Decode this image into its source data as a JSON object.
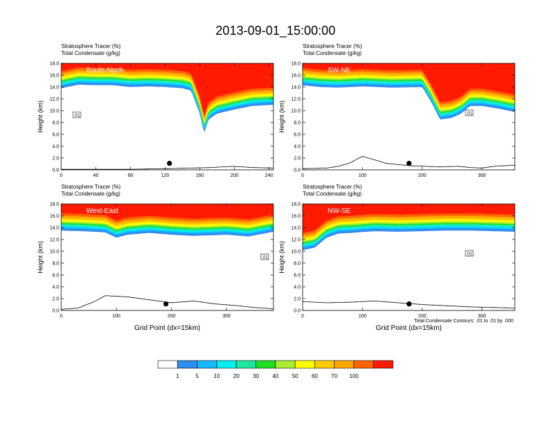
{
  "figure": {
    "title": "2013-09-01_15:00:00",
    "footnote": "Total Condensate Contours: .01 to .01 by .000"
  },
  "colorbar": {
    "colors": [
      "#ffffff",
      "#2f8cf0",
      "#16b8ff",
      "#00f0f0",
      "#1ee8a0",
      "#22dd22",
      "#a8ee33",
      "#ffff00",
      "#ffcc00",
      "#ffa500",
      "#ff6400",
      "#ff1a00"
    ],
    "labels": [
      "1",
      "5",
      "10",
      "20",
      "30",
      "40",
      "50",
      "60",
      "70",
      "100"
    ]
  },
  "chart_data": [
    {
      "type": "contour",
      "panel_label": "South-North",
      "title_line1": "Stratosphere Tracer   (%)",
      "title_line2": "Total Condensate   (g/kg)",
      "ylabel": "Height (km)",
      "xlabel": "",
      "xlim": [
        0,
        245
      ],
      "ylim": [
        0,
        18
      ],
      "xticks": [
        "0",
        "40",
        "80",
        "120",
        "160",
        "200",
        "240"
      ],
      "yticks": [
        "0.0",
        "2.0",
        "4.0",
        "6.0",
        "8.0",
        "10.0",
        "12.0",
        "14.0",
        "16.0",
        "18.0"
      ],
      "contour_label": ".01",
      "marker": {
        "x": 125,
        "y": 1.1
      },
      "tracer_base_x": [
        0,
        20,
        40,
        60,
        80,
        100,
        120,
        140,
        150,
        160,
        165,
        170,
        180,
        200,
        220,
        245
      ],
      "tracer_base_y": [
        13.8,
        14.4,
        14.3,
        14.3,
        14.0,
        14.1,
        14.0,
        13.8,
        13.4,
        9.5,
        6.2,
        8.5,
        9.5,
        10.2,
        10.8,
        11.0
      ],
      "terrain_x": [
        0,
        40,
        80,
        120,
        150,
        175,
        185,
        200,
        220,
        245
      ],
      "terrain_y": [
        0.1,
        0.1,
        0.1,
        0.2,
        0.3,
        0.4,
        0.5,
        0.6,
        0.4,
        0.3
      ]
    },
    {
      "type": "contour",
      "panel_label": "SW-NE",
      "title_line1": "Stratosphere Tracer   (%)",
      "title_line2": "Total Condensate   (g/kg)",
      "ylabel": "Height (km)",
      "xlabel": "",
      "xlim": [
        0,
        355
      ],
      "ylim": [
        0,
        18
      ],
      "xticks": [
        "0",
        "100",
        "200",
        "300"
      ],
      "yticks": [
        "0.0",
        "2.0",
        "4.0",
        "6.0",
        "8.0",
        "10.0",
        "12.0",
        "14.0",
        "16.0",
        "18.0"
      ],
      "contour_label": ".01",
      "marker": {
        "x": 178,
        "y": 1.1
      },
      "tracer_base_x": [
        0,
        30,
        60,
        100,
        150,
        200,
        215,
        230,
        250,
        265,
        280,
        300,
        330,
        355
      ],
      "tracer_base_y": [
        14.3,
        14.0,
        13.9,
        14.1,
        13.9,
        14.0,
        11.5,
        8.5,
        8.8,
        9.5,
        10.8,
        10.8,
        10.3,
        9.8
      ],
      "terrain_x": [
        0,
        40,
        60,
        80,
        100,
        140,
        180,
        230,
        260,
        280,
        300,
        320,
        355
      ],
      "terrain_y": [
        0.2,
        0.3,
        0.6,
        1.2,
        2.3,
        1.1,
        0.7,
        0.5,
        0.6,
        0.4,
        0.3,
        0.6,
        0.8
      ]
    },
    {
      "type": "contour",
      "panel_label": "West-East",
      "title_line1": "Stratosphere Tracer   (%)",
      "title_line2": "Total Condensate   (g/kg)",
      "ylabel": "Height (km)",
      "xlabel": "Grid Point (dx=15km)",
      "xlim": [
        0,
        385
      ],
      "ylim": [
        0,
        18
      ],
      "xticks": [
        "0",
        "100",
        "200",
        "300"
      ],
      "yticks": [
        "0.0",
        "2.0",
        "4.0",
        "6.0",
        "8.0",
        "10.0",
        "12.0",
        "14.0",
        "16.0",
        "18.0"
      ],
      "contour_label": ".01",
      "marker": {
        "x": 190,
        "y": 1.1
      },
      "tracer_base_x": [
        0,
        40,
        80,
        100,
        120,
        160,
        200,
        240,
        300,
        340,
        385
      ],
      "tracer_base_y": [
        13.5,
        13.4,
        13.2,
        12.3,
        12.8,
        13.1,
        12.8,
        12.6,
        12.8,
        12.5,
        13.3
      ],
      "terrain_x": [
        0,
        30,
        60,
        80,
        120,
        160,
        200,
        240,
        280,
        320,
        350,
        385
      ],
      "terrain_y": [
        0.2,
        0.4,
        1.5,
        2.5,
        2.3,
        1.8,
        1.3,
        1.6,
        1.1,
        0.8,
        0.5,
        0.3
      ]
    },
    {
      "type": "contour",
      "panel_label": "NW-SE",
      "title_line1": "Stratosphere Tracer   (%)",
      "title_line2": "Total Condensate   (g/kg)",
      "ylabel": "Height (km)",
      "xlabel": "Grid Point (dx=15km)",
      "xlim": [
        0,
        355
      ],
      "ylim": [
        0,
        18
      ],
      "xticks": [
        "0",
        "100",
        "200",
        "300"
      ],
      "yticks": [
        "0.0",
        "2.0",
        "4.0",
        "6.0",
        "8.0",
        "10.0",
        "12.0",
        "14.0",
        "16.0",
        "18.0"
      ],
      "contour_label": ".01",
      "marker": {
        "x": 178,
        "y": 1.1
      },
      "tracer_base_x": [
        0,
        20,
        40,
        60,
        80,
        120,
        160,
        200,
        240,
        280,
        320,
        355
      ],
      "tracer_base_y": [
        10.2,
        10.6,
        12.3,
        13.0,
        13.1,
        13.4,
        13.3,
        13.4,
        13.5,
        13.5,
        13.4,
        13.3
      ],
      "terrain_x": [
        0,
        40,
        80,
        120,
        160,
        200,
        240,
        280,
        320,
        355
      ],
      "terrain_y": [
        1.5,
        1.3,
        1.4,
        1.6,
        1.3,
        1.0,
        0.8,
        0.6,
        0.5,
        0.4
      ]
    }
  ]
}
